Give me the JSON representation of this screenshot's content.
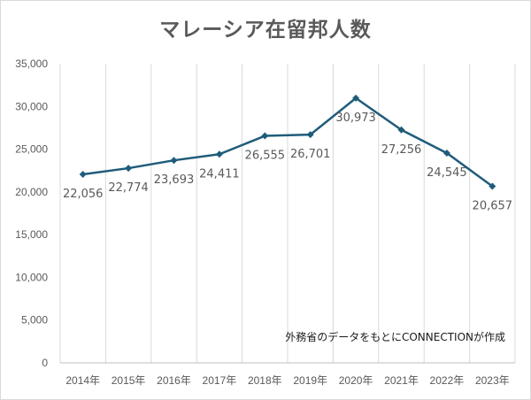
{
  "chart_data": {
    "type": "line",
    "title": "マレーシア在留邦人数",
    "xlabel": "",
    "ylabel": "",
    "categories": [
      "2014年",
      "2015年",
      "2016年",
      "2017年",
      "2018年",
      "2019年",
      "2020年",
      "2021年",
      "2022年",
      "2023年"
    ],
    "values": [
      22056,
      22774,
      23693,
      24411,
      26555,
      26701,
      30973,
      27256,
      24545,
      20657
    ],
    "data_labels": [
      "22,056",
      "22,774",
      "23,693",
      "24,411",
      "26,555",
      "26,701",
      "30,973",
      "27,256",
      "24,545",
      "20,657"
    ],
    "ylim": [
      0,
      35000
    ],
    "yticks": [
      0,
      5000,
      10000,
      15000,
      20000,
      25000,
      30000,
      35000
    ],
    "ytick_labels": [
      "0",
      "5,000",
      "10,000",
      "15,000",
      "20,000",
      "25,000",
      "30,000",
      "35,000"
    ],
    "grid": "vertical",
    "line_color": "#1f5c7a",
    "annotation": "外務省のデータをもとにCONNECTIONが作成"
  }
}
